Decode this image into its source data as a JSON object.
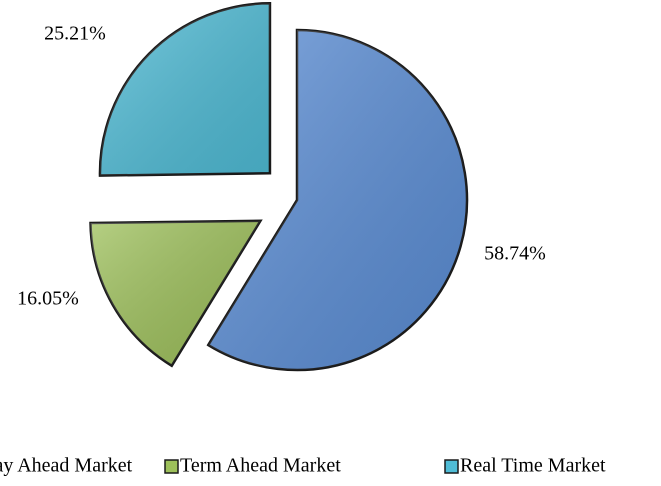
{
  "chart_data": {
    "type": "pie",
    "categories": [
      "Day Ahead Market",
      "Term Ahead Market",
      "Real Time Market"
    ],
    "values": [
      58.74,
      16.05,
      25.21
    ],
    "value_labels": [
      "58.74%",
      "16.05%",
      "25.21%"
    ],
    "colors": [
      "#5b8ed6",
      "#9dc05a",
      "#4fbcd6"
    ],
    "legend": "bottom"
  }
}
